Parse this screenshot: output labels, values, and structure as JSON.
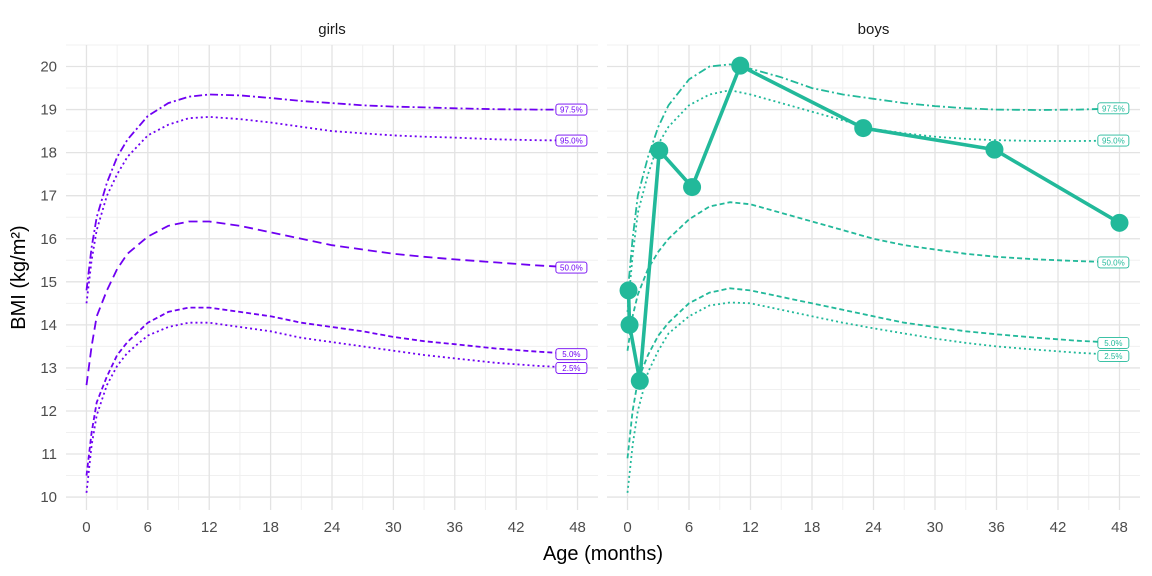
{
  "chart_data": {
    "type": "line",
    "xlabel": "Age (months)",
    "ylabel": "BMI (kg/m²)",
    "xlim": [
      -2,
      50
    ],
    "ylim": [
      9.7,
      20.5
    ],
    "x_ticks": [
      0,
      6,
      12,
      18,
      24,
      30,
      36,
      42,
      48
    ],
    "y_ticks": [
      10,
      11,
      12,
      13,
      14,
      15,
      16,
      17,
      18,
      19,
      20
    ],
    "grid": true,
    "panels": [
      {
        "title": "girls",
        "color": "#6f00f2",
        "curves": [
          {
            "label": "97.5%",
            "dash": "dashdot",
            "points": [
              [
                0,
                14.8
              ],
              [
                0.5,
                15.8
              ],
              [
                1,
                16.5
              ],
              [
                2,
                17.3
              ],
              [
                3,
                17.9
              ],
              [
                4,
                18.3
              ],
              [
                6,
                18.85
              ],
              [
                8,
                19.15
              ],
              [
                10,
                19.3
              ],
              [
                12,
                19.35
              ],
              [
                15,
                19.33
              ],
              [
                18,
                19.27
              ],
              [
                21,
                19.2
              ],
              [
                24,
                19.15
              ],
              [
                27,
                19.1
              ],
              [
                30,
                19.07
              ],
              [
                33,
                19.05
              ],
              [
                36,
                19.03
              ],
              [
                40,
                19.01
              ],
              [
                44,
                19.0
              ],
              [
                48,
                19.0
              ]
            ]
          },
          {
            "label": "95.0%",
            "dash": "dotted",
            "points": [
              [
                0,
                14.5
              ],
              [
                0.5,
                15.5
              ],
              [
                1,
                16.2
              ],
              [
                2,
                17.0
              ],
              [
                3,
                17.5
              ],
              [
                4,
                17.9
              ],
              [
                6,
                18.4
              ],
              [
                8,
                18.65
              ],
              [
                10,
                18.8
              ],
              [
                12,
                18.83
              ],
              [
                15,
                18.78
              ],
              [
                18,
                18.7
              ],
              [
                21,
                18.6
              ],
              [
                24,
                18.5
              ],
              [
                27,
                18.45
              ],
              [
                30,
                18.4
              ],
              [
                33,
                18.37
              ],
              [
                36,
                18.35
              ],
              [
                40,
                18.31
              ],
              [
                44,
                18.29
              ],
              [
                48,
                18.28
              ]
            ]
          },
          {
            "label": "50.0%",
            "dash": "longdash",
            "points": [
              [
                0,
                12.6
              ],
              [
                0.5,
                13.5
              ],
              [
                1,
                14.2
              ],
              [
                2,
                14.8
              ],
              [
                3,
                15.3
              ],
              [
                4,
                15.65
              ],
              [
                6,
                16.05
              ],
              [
                8,
                16.3
              ],
              [
                10,
                16.4
              ],
              [
                12,
                16.4
              ],
              [
                15,
                16.3
              ],
              [
                18,
                16.15
              ],
              [
                21,
                16.0
              ],
              [
                24,
                15.85
              ],
              [
                27,
                15.75
              ],
              [
                30,
                15.65
              ],
              [
                33,
                15.58
              ],
              [
                36,
                15.52
              ],
              [
                40,
                15.45
              ],
              [
                44,
                15.38
              ],
              [
                48,
                15.33
              ]
            ]
          },
          {
            "label": "5.0%",
            "dash": "dashed",
            "points": [
              [
                0,
                10.5
              ],
              [
                0.5,
                11.5
              ],
              [
                1,
                12.2
              ],
              [
                2,
                12.8
              ],
              [
                3,
                13.3
              ],
              [
                4,
                13.6
              ],
              [
                6,
                14.05
              ],
              [
                8,
                14.3
              ],
              [
                10,
                14.4
              ],
              [
                12,
                14.4
              ],
              [
                15,
                14.3
              ],
              [
                18,
                14.2
              ],
              [
                21,
                14.05
              ],
              [
                24,
                13.95
              ],
              [
                27,
                13.85
              ],
              [
                30,
                13.72
              ],
              [
                33,
                13.62
              ],
              [
                36,
                13.55
              ],
              [
                40,
                13.45
              ],
              [
                44,
                13.38
              ],
              [
                48,
                13.32
              ]
            ]
          },
          {
            "label": "2.5%",
            "dash": "dotted",
            "points": [
              [
                0,
                10.1
              ],
              [
                0.5,
                11.2
              ],
              [
                1,
                11.9
              ],
              [
                2,
                12.6
              ],
              [
                3,
                13.05
              ],
              [
                4,
                13.35
              ],
              [
                6,
                13.75
              ],
              [
                8,
                13.95
              ],
              [
                10,
                14.05
              ],
              [
                12,
                14.05
              ],
              [
                15,
                13.95
              ],
              [
                18,
                13.85
              ],
              [
                21,
                13.7
              ],
              [
                24,
                13.6
              ],
              [
                27,
                13.5
              ],
              [
                30,
                13.4
              ],
              [
                33,
                13.3
              ],
              [
                36,
                13.22
              ],
              [
                40,
                13.12
              ],
              [
                44,
                13.05
              ],
              [
                48,
                13.0
              ]
            ]
          }
        ]
      },
      {
        "title": "boys",
        "color": "#22b99a",
        "curves": [
          {
            "label": "97.5%",
            "dash": "dashdot",
            "points": [
              [
                0,
                14.7
              ],
              [
                0.5,
                16.0
              ],
              [
                1,
                17.0
              ],
              [
                2,
                17.9
              ],
              [
                3,
                18.6
              ],
              [
                4,
                19.1
              ],
              [
                6,
                19.7
              ],
              [
                8,
                20.0
              ],
              [
                10,
                20.05
              ],
              [
                12,
                19.95
              ],
              [
                15,
                19.75
              ],
              [
                18,
                19.5
              ],
              [
                21,
                19.35
              ],
              [
                24,
                19.25
              ],
              [
                27,
                19.15
              ],
              [
                30,
                19.08
              ],
              [
                33,
                19.03
              ],
              [
                36,
                19.0
              ],
              [
                40,
                18.99
              ],
              [
                44,
                19.0
              ],
              [
                48,
                19.03
              ]
            ]
          },
          {
            "label": "95.0%",
            "dash": "dotted",
            "points": [
              [
                0,
                14.3
              ],
              [
                0.5,
                15.6
              ],
              [
                1,
                16.6
              ],
              [
                2,
                17.5
              ],
              [
                3,
                18.2
              ],
              [
                4,
                18.6
              ],
              [
                6,
                19.1
              ],
              [
                8,
                19.35
              ],
              [
                10,
                19.45
              ],
              [
                12,
                19.35
              ],
              [
                15,
                19.15
              ],
              [
                18,
                18.95
              ],
              [
                21,
                18.75
              ],
              [
                24,
                18.55
              ],
              [
                27,
                18.45
              ],
              [
                30,
                18.37
              ],
              [
                33,
                18.32
              ],
              [
                36,
                18.29
              ],
              [
                40,
                18.27
              ],
              [
                44,
                18.27
              ],
              [
                48,
                18.28
              ]
            ]
          },
          {
            "label": "50.0%",
            "dash": "dashed",
            "points": [
              [
                0,
                13.4
              ],
              [
                0.5,
                14.2
              ],
              [
                1,
                14.7
              ],
              [
                2,
                15.3
              ],
              [
                3,
                15.7
              ],
              [
                4,
                16.0
              ],
              [
                6,
                16.45
              ],
              [
                8,
                16.75
              ],
              [
                10,
                16.85
              ],
              [
                12,
                16.8
              ],
              [
                15,
                16.6
              ],
              [
                18,
                16.4
              ],
              [
                21,
                16.2
              ],
              [
                24,
                16.0
              ],
              [
                27,
                15.85
              ],
              [
                30,
                15.75
              ],
              [
                33,
                15.65
              ],
              [
                36,
                15.58
              ],
              [
                40,
                15.52
              ],
              [
                44,
                15.48
              ],
              [
                48,
                15.45
              ]
            ]
          },
          {
            "label": "5.0%",
            "dash": "dashed",
            "points": [
              [
                0,
                10.9
              ],
              [
                0.5,
                12.0
              ],
              [
                1,
                12.7
              ],
              [
                2,
                13.3
              ],
              [
                3,
                13.75
              ],
              [
                4,
                14.05
              ],
              [
                6,
                14.5
              ],
              [
                8,
                14.75
              ],
              [
                10,
                14.85
              ],
              [
                12,
                14.8
              ],
              [
                15,
                14.65
              ],
              [
                18,
                14.5
              ],
              [
                21,
                14.35
              ],
              [
                24,
                14.2
              ],
              [
                27,
                14.05
              ],
              [
                30,
                13.95
              ],
              [
                33,
                13.85
              ],
              [
                36,
                13.78
              ],
              [
                40,
                13.7
              ],
              [
                44,
                13.63
              ],
              [
                48,
                13.58
              ]
            ]
          },
          {
            "label": "2.5%",
            "dash": "dotted",
            "points": [
              [
                0,
                10.1
              ],
              [
                0.5,
                11.2
              ],
              [
                1,
                12.0
              ],
              [
                2,
                12.9
              ],
              [
                3,
                13.4
              ],
              [
                4,
                13.8
              ],
              [
                6,
                14.2
              ],
              [
                8,
                14.45
              ],
              [
                10,
                14.52
              ],
              [
                12,
                14.5
              ],
              [
                15,
                14.35
              ],
              [
                18,
                14.2
              ],
              [
                21,
                14.05
              ],
              [
                24,
                13.92
              ],
              [
                27,
                13.8
              ],
              [
                30,
                13.68
              ],
              [
                33,
                13.58
              ],
              [
                36,
                13.5
              ],
              [
                40,
                13.42
              ],
              [
                44,
                13.35
              ],
              [
                48,
                13.3
              ]
            ]
          }
        ],
        "observed": [
          [
            0.1,
            14.8
          ],
          [
            0.2,
            14.0
          ],
          [
            1.2,
            12.7
          ],
          [
            3.1,
            18.05
          ],
          [
            6.3,
            17.2
          ],
          [
            11.0,
            20.02
          ],
          [
            23.0,
            18.57
          ],
          [
            35.8,
            18.07
          ],
          [
            48.0,
            16.37
          ]
        ]
      }
    ]
  }
}
